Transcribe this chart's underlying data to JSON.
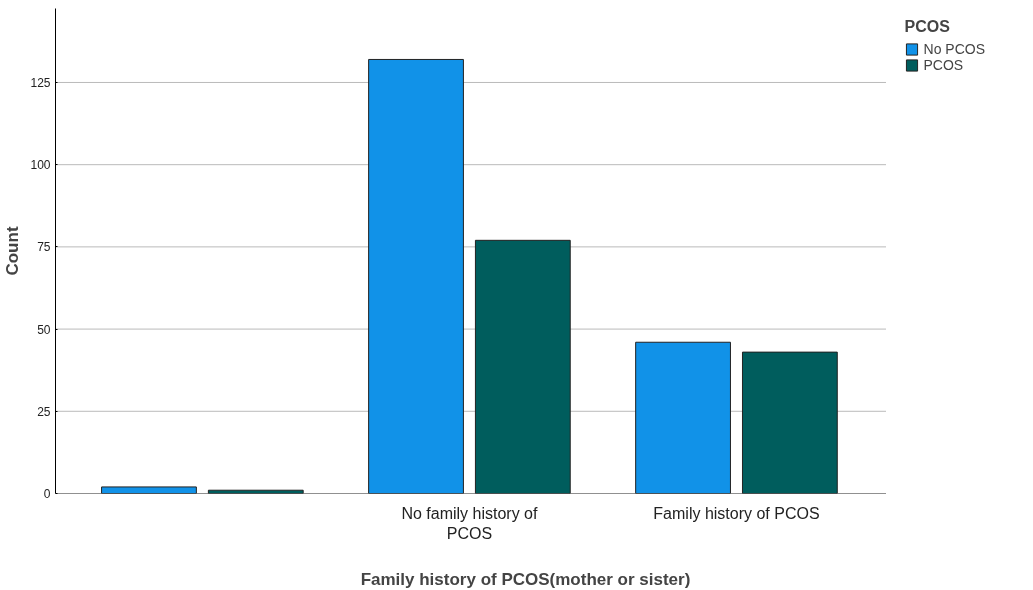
{
  "chart_data": {
    "type": "bar",
    "xlabel": "Family history of PCOS(mother or sister)",
    "ylabel": "Count",
    "legend_title": "PCOS",
    "categories": [
      null,
      "No family history of PCOS",
      "Family history of PCOS"
    ],
    "series": [
      {
        "name": "No PCOS",
        "color": "#1192e8",
        "values": [
          2,
          132,
          46
        ]
      },
      {
        "name": "PCOS",
        "color": "#005d5d",
        "values": [
          1,
          77,
          43
        ]
      }
    ],
    "ylim": [
      0,
      147.5
    ],
    "yticks": [
      0,
      25,
      50,
      75,
      100,
      125
    ],
    "grid": "y",
    "legend": "top right"
  }
}
